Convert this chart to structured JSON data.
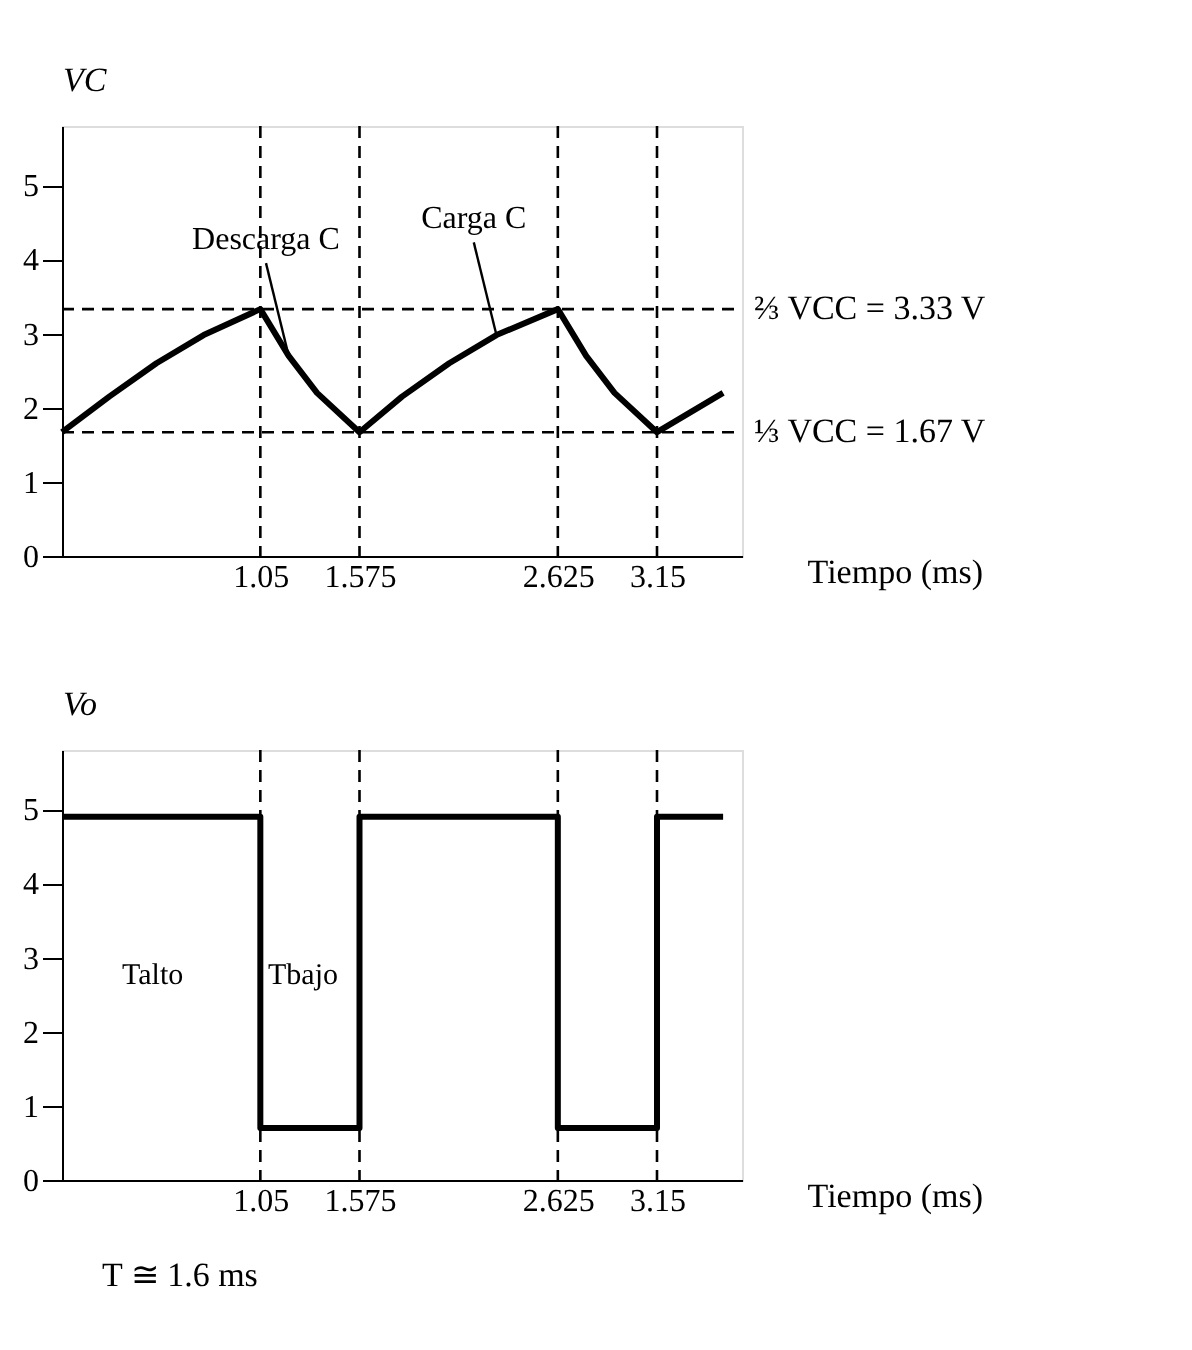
{
  "chart_data": [
    {
      "type": "line",
      "xlabel": "Tiempo (ms)",
      "ylabel": "VC",
      "xlim": [
        0,
        3.6
      ],
      "xticks": [
        1.05,
        1.575,
        2.625,
        3.15
      ],
      "ylim": [
        0,
        5.8
      ],
      "yticks": [
        0,
        1,
        2,
        3,
        4,
        5
      ],
      "grid": false,
      "marker": "none",
      "line_style": "solid",
      "series": [
        {
          "color": "#000000",
          "x": [
            0,
            0.25,
            0.5,
            0.75,
            1.05,
            1.2,
            1.35,
            1.575,
            1.8,
            2.05,
            2.3,
            2.625,
            2.775,
            2.925,
            3.15,
            3.5
          ],
          "values": [
            1.67,
            2.15,
            2.6,
            2.98,
            3.33,
            2.7,
            2.2,
            1.67,
            2.15,
            2.6,
            2.98,
            3.33,
            2.7,
            2.2,
            1.67,
            2.2
          ]
        }
      ],
      "ref_lines": [
        {
          "axis": "y",
          "value": 3.33,
          "label": "⅔ VCC = 3.33 V",
          "line_style": "dashed"
        },
        {
          "axis": "y",
          "value": 1.67,
          "label": "⅓ VCC = 1.67 V",
          "line_style": "dashed"
        },
        {
          "axis": "x",
          "value": 1.05,
          "line_style": "dashed"
        },
        {
          "axis": "x",
          "value": 1.575,
          "line_style": "dashed"
        },
        {
          "axis": "x",
          "value": 2.625,
          "line_style": "dashed"
        },
        {
          "axis": "x",
          "value": 3.15,
          "line_style": "dashed"
        }
      ],
      "annotations": [
        {
          "text": "Descarga C",
          "x": 1.2,
          "y": 2.7
        },
        {
          "text": "Carga C",
          "x": 2.3,
          "y": 2.98
        }
      ]
    },
    {
      "type": "line",
      "xlabel": "Tiempo (ms)",
      "ylabel": "Vo",
      "xlim": [
        0,
        3.6
      ],
      "xticks": [
        1.05,
        1.575,
        2.625,
        3.15
      ],
      "ylim": [
        0,
        5.8
      ],
      "yticks": [
        0,
        1,
        2,
        3,
        4,
        5
      ],
      "grid": false,
      "marker": "none",
      "line_style": "solid",
      "series": [
        {
          "color": "#000000",
          "x": [
            0,
            1.05,
            1.05,
            1.575,
            1.575,
            2.625,
            2.625,
            3.15,
            3.15,
            3.5
          ],
          "values": [
            4.9,
            4.9,
            0.7,
            0.7,
            4.9,
            4.9,
            0.7,
            0.7,
            4.9,
            4.9
          ]
        }
      ],
      "ref_lines": [
        {
          "axis": "x",
          "value": 1.05,
          "line_style": "dashed"
        },
        {
          "axis": "x",
          "value": 1.575,
          "line_style": "dashed"
        },
        {
          "axis": "x",
          "value": 2.625,
          "line_style": "dashed"
        },
        {
          "axis": "x",
          "value": 3.15,
          "line_style": "dashed"
        }
      ],
      "annotations": [
        "Talto",
        "Tbajo",
        "T ≅ 1.6 ms"
      ]
    }
  ]
}
